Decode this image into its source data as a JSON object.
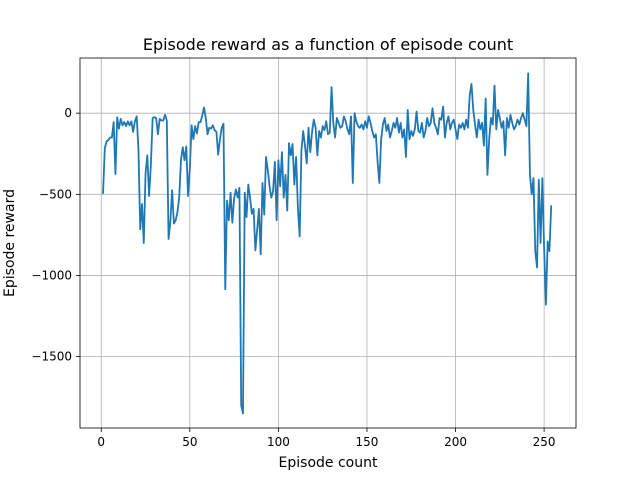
{
  "chart_data": {
    "type": "line",
    "title": "Episode reward as a function of episode count",
    "xlabel": "Episode count",
    "ylabel": "Episode reward",
    "xlim": [
      -12,
      268
    ],
    "ylim": [
      -1940,
      340
    ],
    "xticks": [
      0,
      50,
      100,
      150,
      200,
      250
    ],
    "yticks": [
      -1500,
      -1000,
      -500,
      0
    ],
    "xtick_labels": [
      "0",
      "50",
      "100",
      "150",
      "200",
      "250"
    ],
    "ytick_labels": [
      "−1500",
      "−1000",
      "−500",
      "0"
    ],
    "grid": true,
    "line_color": "#1f77b4",
    "series": [
      {
        "values": [
          [
            1,
            -495
          ],
          [
            2,
            -215
          ],
          [
            3,
            -175
          ],
          [
            4,
            -165
          ],
          [
            5,
            -150
          ],
          [
            6,
            -150
          ],
          [
            7,
            -55
          ],
          [
            8,
            -375
          ],
          [
            9,
            -25
          ],
          [
            10,
            -95
          ],
          [
            11,
            -35
          ],
          [
            12,
            -75
          ],
          [
            13,
            -55
          ],
          [
            14,
            -80
          ],
          [
            15,
            -50
          ],
          [
            16,
            -75
          ],
          [
            17,
            -50
          ],
          [
            18,
            -115
          ],
          [
            19,
            -50
          ],
          [
            20,
            -20
          ],
          [
            21,
            -225
          ],
          [
            22,
            -715
          ],
          [
            23,
            -560
          ],
          [
            24,
            -800
          ],
          [
            25,
            -370
          ],
          [
            26,
            -260
          ],
          [
            27,
            -510
          ],
          [
            28,
            -320
          ],
          [
            29,
            -30
          ],
          [
            30,
            -25
          ],
          [
            31,
            -30
          ],
          [
            32,
            -130
          ],
          [
            33,
            -35
          ],
          [
            34,
            -45
          ],
          [
            35,
            -45
          ],
          [
            36,
            -10
          ],
          [
            37,
            -45
          ],
          [
            38,
            -775
          ],
          [
            39,
            -670
          ],
          [
            40,
            -475
          ],
          [
            41,
            -680
          ],
          [
            42,
            -660
          ],
          [
            43,
            -610
          ],
          [
            44,
            -520
          ],
          [
            45,
            -290
          ],
          [
            46,
            -210
          ],
          [
            47,
            -290
          ],
          [
            48,
            -205
          ],
          [
            49,
            -510
          ],
          [
            50,
            -340
          ],
          [
            51,
            -75
          ],
          [
            52,
            -160
          ],
          [
            53,
            -80
          ],
          [
            54,
            -125
          ],
          [
            55,
            -55
          ],
          [
            56,
            -55
          ],
          [
            57,
            -15
          ],
          [
            58,
            35
          ],
          [
            59,
            -30
          ],
          [
            60,
            -130
          ],
          [
            61,
            -90
          ],
          [
            62,
            -95
          ],
          [
            63,
            -75
          ],
          [
            64,
            -105
          ],
          [
            65,
            -115
          ],
          [
            66,
            -255
          ],
          [
            67,
            -160
          ],
          [
            68,
            -90
          ],
          [
            69,
            -65
          ],
          [
            70,
            -1085
          ],
          [
            71,
            -540
          ],
          [
            72,
            -660
          ],
          [
            73,
            -490
          ],
          [
            74,
            -675
          ],
          [
            75,
            -525
          ],
          [
            76,
            -470
          ],
          [
            77,
            -520
          ],
          [
            78,
            -460
          ],
          [
            79,
            -1800
          ],
          [
            80,
            -1850
          ],
          [
            81,
            -490
          ],
          [
            82,
            -640
          ],
          [
            83,
            -440
          ],
          [
            84,
            -520
          ],
          [
            85,
            -620
          ],
          [
            86,
            -590
          ],
          [
            87,
            -845
          ],
          [
            88,
            -720
          ],
          [
            89,
            -590
          ],
          [
            90,
            -870
          ],
          [
            91,
            -430
          ],
          [
            92,
            -625
          ],
          [
            93,
            -270
          ],
          [
            94,
            -350
          ],
          [
            95,
            -450
          ],
          [
            96,
            -520
          ],
          [
            97,
            -480
          ],
          [
            98,
            -300
          ],
          [
            99,
            -660
          ],
          [
            100,
            -290
          ],
          [
            101,
            -450
          ],
          [
            102,
            -240
          ],
          [
            103,
            -520
          ],
          [
            104,
            -380
          ],
          [
            105,
            -600
          ],
          [
            106,
            -185
          ],
          [
            107,
            -260
          ],
          [
            108,
            -190
          ],
          [
            109,
            -440
          ],
          [
            110,
            -270
          ],
          [
            111,
            -580
          ],
          [
            112,
            -760
          ],
          [
            113,
            -230
          ],
          [
            114,
            -110
          ],
          [
            115,
            -200
          ],
          [
            116,
            -310
          ],
          [
            117,
            -90
          ],
          [
            118,
            -240
          ],
          [
            119,
            -115
          ],
          [
            120,
            -40
          ],
          [
            121,
            -90
          ],
          [
            122,
            -260
          ],
          [
            123,
            -110
          ],
          [
            124,
            -150
          ],
          [
            125,
            -80
          ],
          [
            126,
            -105
          ],
          [
            127,
            -50
          ],
          [
            128,
            -130
          ],
          [
            129,
            -120
          ],
          [
            130,
            160
          ],
          [
            131,
            -60
          ],
          [
            132,
            -150
          ],
          [
            133,
            -30
          ],
          [
            134,
            -60
          ],
          [
            135,
            -90
          ],
          [
            136,
            -80
          ],
          [
            137,
            -20
          ],
          [
            138,
            -50
          ],
          [
            139,
            -100
          ],
          [
            140,
            -130
          ],
          [
            141,
            -20
          ],
          [
            142,
            -430
          ],
          [
            143,
            0
          ],
          [
            144,
            -50
          ],
          [
            145,
            -80
          ],
          [
            146,
            -90
          ],
          [
            147,
            -70
          ],
          [
            148,
            -100
          ],
          [
            149,
            -50
          ],
          [
            150,
            -90
          ],
          [
            151,
            -20
          ],
          [
            152,
            -60
          ],
          [
            153,
            -110
          ],
          [
            154,
            -150
          ],
          [
            155,
            -130
          ],
          [
            156,
            -300
          ],
          [
            157,
            -430
          ],
          [
            158,
            -160
          ],
          [
            159,
            -70
          ],
          [
            160,
            -30
          ],
          [
            161,
            -110
          ],
          [
            162,
            -70
          ],
          [
            163,
            -150
          ],
          [
            164,
            -110
          ],
          [
            165,
            -60
          ],
          [
            166,
            -90
          ],
          [
            167,
            -30
          ],
          [
            168,
            -120
          ],
          [
            169,
            -60
          ],
          [
            170,
            -150
          ],
          [
            171,
            -100
          ],
          [
            172,
            -270
          ],
          [
            173,
            20
          ],
          [
            174,
            -160
          ],
          [
            175,
            -110
          ],
          [
            176,
            -140
          ],
          [
            177,
            -100
          ],
          [
            178,
            10
          ],
          [
            179,
            -110
          ],
          [
            180,
            -120
          ],
          [
            181,
            -60
          ],
          [
            182,
            -150
          ],
          [
            183,
            -110
          ],
          [
            184,
            -30
          ],
          [
            185,
            -80
          ],
          [
            186,
            -60
          ],
          [
            187,
            30
          ],
          [
            188,
            -60
          ],
          [
            189,
            -90
          ],
          [
            190,
            -130
          ],
          [
            191,
            -30
          ],
          [
            192,
            -40
          ],
          [
            193,
            40
          ],
          [
            194,
            -150
          ],
          [
            195,
            -60
          ],
          [
            196,
            -20
          ],
          [
            197,
            -100
          ],
          [
            198,
            -60
          ],
          [
            199,
            -40
          ],
          [
            200,
            -100
          ],
          [
            201,
            -160
          ],
          [
            202,
            -70
          ],
          [
            203,
            -90
          ],
          [
            204,
            -60
          ],
          [
            205,
            -100
          ],
          [
            206,
            -40
          ],
          [
            207,
            -90
          ],
          [
            208,
            110
          ],
          [
            209,
            180
          ],
          [
            210,
            20
          ],
          [
            211,
            -70
          ],
          [
            212,
            -150
          ],
          [
            213,
            -40
          ],
          [
            214,
            -100
          ],
          [
            215,
            -60
          ],
          [
            216,
            -200
          ],
          [
            217,
            90
          ],
          [
            218,
            -380
          ],
          [
            219,
            -160
          ],
          [
            220,
            -30
          ],
          [
            221,
            -70
          ],
          [
            222,
            170
          ],
          [
            223,
            -100
          ],
          [
            224,
            20
          ],
          [
            225,
            -30
          ],
          [
            226,
            -90
          ],
          [
            227,
            -50
          ],
          [
            228,
            -260
          ],
          [
            229,
            -30
          ],
          [
            230,
            -90
          ],
          [
            231,
            -10
          ],
          [
            232,
            -60
          ],
          [
            233,
            -100
          ],
          [
            234,
            -80
          ],
          [
            235,
            -40
          ],
          [
            236,
            -70
          ],
          [
            237,
            -30
          ],
          [
            238,
            0
          ],
          [
            239,
            -40
          ],
          [
            240,
            -80
          ],
          [
            241,
            245
          ],
          [
            242,
            -380
          ],
          [
            243,
            -500
          ],
          [
            244,
            -400
          ],
          [
            245,
            -850
          ],
          [
            246,
            -950
          ],
          [
            247,
            -410
          ],
          [
            248,
            -800
          ],
          [
            249,
            -400
          ],
          [
            250,
            -830
          ],
          [
            251,
            -1180
          ],
          [
            252,
            -790
          ],
          [
            253,
            -850
          ],
          [
            254,
            -570
          ]
        ]
      }
    ]
  }
}
